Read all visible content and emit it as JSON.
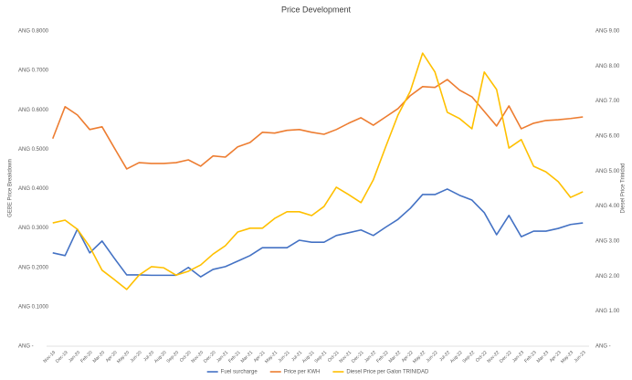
{
  "chart_data": {
    "type": "line",
    "title": "Price Development",
    "y_label": "GEBE Price Breakdown",
    "y2_label": "Diesel Price Trinidad",
    "categories": [
      "Nov-19",
      "Dec-19",
      "Jan-20",
      "Feb-20",
      "Mar-20",
      "Apr-20",
      "May-20",
      "Jun-20",
      "Jul-20",
      "Aug-20",
      "Sep-20",
      "Oct-20",
      "Nov-20",
      "Dec-20",
      "Jan-21",
      "Feb-21",
      "Mar-21",
      "Apr-21",
      "May-21",
      "Jun-21",
      "Jul-21",
      "Aug-21",
      "Sep-21",
      "Oct-21",
      "Nov-21",
      "Dec-21",
      "Jan-22",
      "Feb-22",
      "Mar-22",
      "Apr-22",
      "May-22",
      "Jun-22",
      "Jul-22",
      "Aug-22",
      "Sep-22",
      "Oct-22",
      "Nov-22",
      "Dec-22",
      "Jan-23",
      "Feb-23",
      "Mar-23",
      "Apr-23",
      "May-23",
      "Jun-23"
    ],
    "series": [
      {
        "name": "Fuel surcharge",
        "color": "#4472c4",
        "values": [
          0.237,
          0.23,
          0.297,
          0.237,
          0.267,
          0.223,
          0.181,
          0.181,
          0.18,
          0.18,
          0.18,
          0.2,
          0.176,
          0.195,
          0.202,
          0.216,
          0.23,
          0.25,
          0.25,
          0.25,
          0.269,
          0.264,
          0.264,
          0.281,
          0.288,
          0.295,
          0.281,
          0.302,
          0.322,
          0.35,
          0.385,
          0.385,
          0.399,
          0.383,
          0.371,
          0.339,
          0.283,
          0.332,
          0.278,
          0.292,
          0.292,
          0.299,
          0.309,
          0.313
        ]
      },
      {
        "name": "Price per KWH",
        "color": "#ed7d31",
        "values": [
          0.527,
          0.608,
          0.587,
          0.55,
          0.557,
          0.503,
          0.45,
          0.466,
          0.464,
          0.464,
          0.466,
          0.473,
          0.457,
          0.483,
          0.48,
          0.506,
          0.517,
          0.543,
          0.541,
          0.548,
          0.55,
          0.543,
          0.538,
          0.55,
          0.566,
          0.58,
          0.561,
          0.582,
          0.603,
          0.636,
          0.659,
          0.657,
          0.677,
          0.65,
          0.633,
          0.596,
          0.559,
          0.61,
          0.552,
          0.566,
          0.573,
          0.575,
          0.578,
          0.582
        ]
      },
      {
        "name": "Diesel Price per Galon TRINIDAD",
        "color": "#ffc000",
        "axis": "y2",
        "values": [
          3.52,
          3.6,
          3.34,
          2.84,
          2.17,
          1.9,
          1.62,
          2.03,
          2.27,
          2.24,
          2.03,
          2.14,
          2.32,
          2.63,
          2.87,
          3.26,
          3.37,
          3.37,
          3.65,
          3.84,
          3.84,
          3.73,
          3.99,
          4.54,
          4.33,
          4.1,
          4.75,
          5.69,
          6.6,
          7.28,
          8.37,
          7.83,
          6.68,
          6.5,
          6.21,
          7.83,
          7.33,
          5.66,
          5.9,
          5.14,
          4.98,
          4.7,
          4.25,
          4.41
        ]
      }
    ],
    "ylim": [
      0,
      0.8
    ],
    "yticks": [
      {
        "value": 0,
        "label": "ANG -"
      },
      {
        "value": 0.1,
        "label": "ANG 0.1000"
      },
      {
        "value": 0.2,
        "label": "ANG 0.2000"
      },
      {
        "value": 0.3,
        "label": "ANG 0.3000"
      },
      {
        "value": 0.4,
        "label": "ANG 0.4000"
      },
      {
        "value": 0.5,
        "label": "ANG 0.5000"
      },
      {
        "value": 0.6,
        "label": "ANG 0.6000"
      },
      {
        "value": 0.7,
        "label": "ANG 0.7000"
      },
      {
        "value": 0.8,
        "label": "ANG 0.8000"
      }
    ],
    "y2lim": [
      0,
      9
    ],
    "y2ticks": [
      {
        "value": 0,
        "label": "ANG -"
      },
      {
        "value": 1,
        "label": "ANG 1.00"
      },
      {
        "value": 2,
        "label": "ANG 2.00"
      },
      {
        "value": 3,
        "label": "ANG 3.00"
      },
      {
        "value": 4,
        "label": "ANG 4.00"
      },
      {
        "value": 5,
        "label": "ANG 5.00"
      },
      {
        "value": 6,
        "label": "ANG 6.00"
      },
      {
        "value": 7,
        "label": "ANG 7.00"
      },
      {
        "value": 8,
        "label": "ANG 8.00"
      },
      {
        "value": 9,
        "label": "ANG 9.00"
      }
    ],
    "grid": false,
    "legend": "bottom"
  }
}
